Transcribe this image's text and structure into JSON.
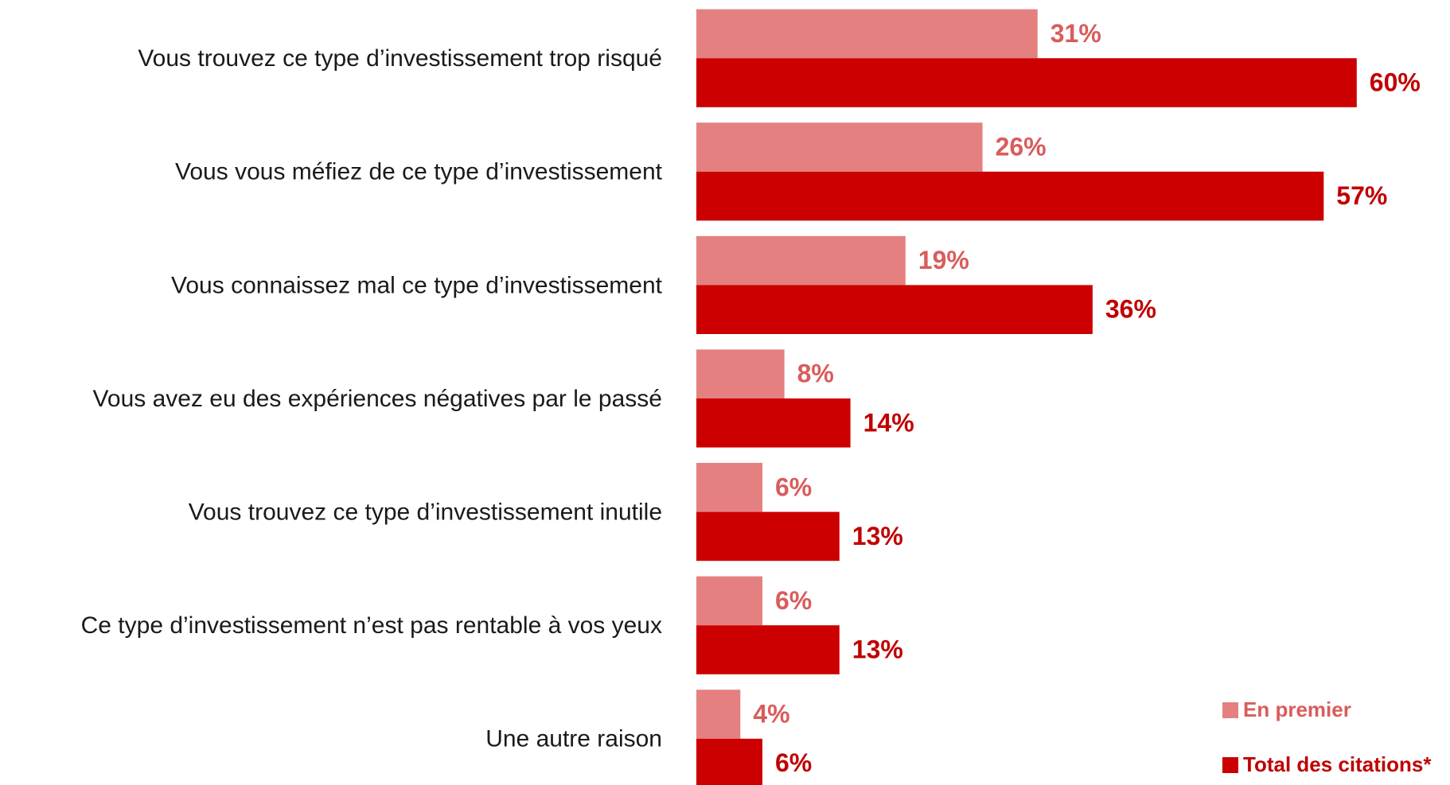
{
  "chart_data": {
    "type": "bar",
    "orientation": "horizontal",
    "categories": [
      "Vous trouvez ce type d’investissement trop risqué",
      "Vous vous méfiez de ce type d’investissement",
      "Vous connaissez mal ce type d’investissement",
      "Vous avez eu des expériences négatives par le passé",
      "Vous trouvez ce type d’investissement inutile",
      "Ce type d’investissement n’est pas rentable à vos yeux",
      "Une autre raison"
    ],
    "series": [
      {
        "name": "En premier",
        "color": "#e58080",
        "label_color": "#d95c5c",
        "values": [
          31,
          26,
          19,
          8,
          6,
          6,
          4
        ],
        "value_labels": [
          "31%",
          "26%",
          "19%",
          "8%",
          "6%",
          "6%",
          "4%"
        ]
      },
      {
        "name": "Total des citations*",
        "color": "#cc0000",
        "label_color": "#c00000",
        "values": [
          60,
          57,
          36,
          14,
          13,
          13,
          6
        ],
        "value_labels": [
          "60%",
          "57%",
          "36%",
          "14%",
          "13%",
          "13%",
          "6%"
        ]
      }
    ],
    "legend": "bottom-right"
  }
}
